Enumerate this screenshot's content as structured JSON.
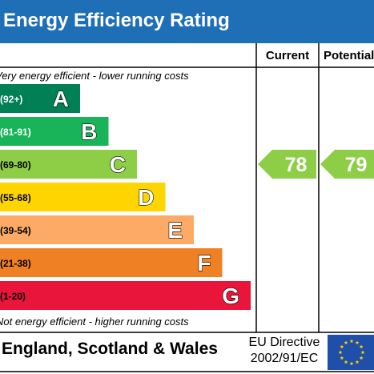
{
  "title": "Energy Efficiency Rating",
  "colors": {
    "title_bar": "#1f6fb6",
    "eu_flag": "#1f4fa8",
    "eu_stars": "#ffd200"
  },
  "chart_data": {
    "type": "bar",
    "columns": {
      "current": "Current",
      "potential": "Potential"
    },
    "top_note": "Very energy efficient - lower running costs",
    "bottom_note": "Not energy efficient - higher running costs",
    "bands": [
      {
        "letter": "A",
        "range": "(92+)",
        "color": "#008054"
      },
      {
        "letter": "B",
        "range": "(81-91)",
        "color": "#19b459"
      },
      {
        "letter": "C",
        "range": "(69-80)",
        "color": "#8dce46"
      },
      {
        "letter": "D",
        "range": "(55-68)",
        "color": "#ffd500"
      },
      {
        "letter": "E",
        "range": "(39-54)",
        "color": "#fcaa65"
      },
      {
        "letter": "F",
        "range": "(21-38)",
        "color": "#ef8023"
      },
      {
        "letter": "G",
        "range": "(1-20)",
        "color": "#e9153b"
      }
    ],
    "current": {
      "value": "78",
      "band": "C",
      "color": "#8dce46"
    },
    "potential": {
      "value": "79",
      "band": "C",
      "color": "#8dce46"
    }
  },
  "footer": {
    "region": "England, Scotland & Wales",
    "directive_line1": "EU Directive",
    "directive_line2": "2002/91/EC"
  }
}
